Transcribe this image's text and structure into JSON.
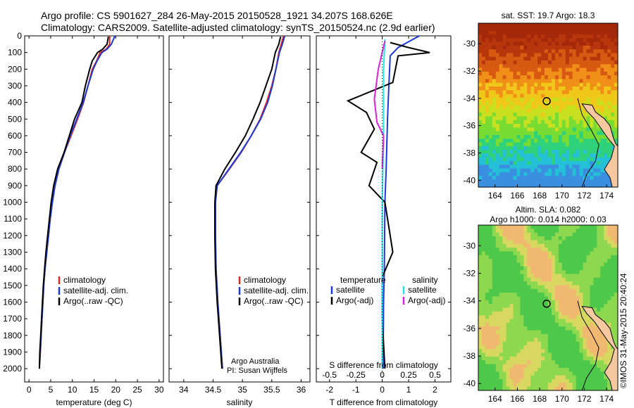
{
  "header": {
    "line1": "Argo profile: CS 5901627_284 26-May-2015 20150528_1921 34.207S 168.626E",
    "line2": "Climatology: CARS2009. Satellite-adjusted climatology: synTS_20150524.nc (2.9d earlier)"
  },
  "footer_stamp": "©IMOS 31-May-2015 20:40:24",
  "credit": {
    "line1": "Argo Australia",
    "line2": "PI: Susan Wijffels"
  },
  "colors": {
    "climatology": "#e8281e",
    "satellite": "#1a3adf",
    "argo": "#000000",
    "sat_s": "#22e6e6",
    "argo_s": "#e020e0"
  },
  "chart_data": [
    {
      "type": "line",
      "xlabel": "temperature (deg C)",
      "ylabel": "",
      "xlim": [
        -1,
        31
      ],
      "ylim": [
        2080,
        0
      ],
      "xticks": [
        0,
        5,
        10,
        15,
        20,
        25,
        30
      ],
      "yticks": [
        0,
        100,
        200,
        300,
        400,
        500,
        600,
        700,
        800,
        900,
        1000,
        1100,
        1200,
        1300,
        1400,
        1500,
        1600,
        1700,
        1800,
        1900,
        2000
      ],
      "legend": {
        "location": "center",
        "items": [
          "climatology",
          "satellite-adj. clim.",
          "Argo(..raw -QC)"
        ]
      },
      "series": [
        {
          "name": "climatology",
          "color": "#e8281e",
          "points": [
            [
              18.6,
              0
            ],
            [
              18.6,
              50
            ],
            [
              17.8,
              80
            ],
            [
              16.4,
              100
            ],
            [
              15.6,
              150
            ],
            [
              14.6,
              200
            ],
            [
              13.6,
              300
            ],
            [
              12.6,
              400
            ],
            [
              11.2,
              500
            ],
            [
              9.7,
              600
            ],
            [
              8.2,
              700
            ],
            [
              6.9,
              800
            ],
            [
              6.0,
              900
            ],
            [
              5.4,
              1000
            ],
            [
              4.9,
              1100
            ],
            [
              4.5,
              1200
            ],
            [
              4.1,
              1300
            ],
            [
              3.7,
              1400
            ],
            [
              3.4,
              1500
            ],
            [
              3.2,
              1600
            ],
            [
              3.0,
              1700
            ],
            [
              2.8,
              1800
            ],
            [
              2.6,
              1900
            ],
            [
              2.4,
              2000
            ]
          ]
        },
        {
          "name": "satellite-adj. clim.",
          "color": "#1a3adf",
          "points": [
            [
              19.8,
              0
            ],
            [
              19.0,
              50
            ],
            [
              18.0,
              80
            ],
            [
              16.8,
              100
            ],
            [
              15.7,
              150
            ],
            [
              14.8,
              200
            ],
            [
              13.6,
              300
            ],
            [
              12.5,
              400
            ],
            [
              11.0,
              500
            ],
            [
              9.5,
              600
            ],
            [
              8.2,
              700
            ],
            [
              6.9,
              800
            ],
            [
              6.0,
              900
            ],
            [
              5.4,
              1000
            ],
            [
              4.9,
              1100
            ],
            [
              4.5,
              1200
            ],
            [
              4.1,
              1300
            ],
            [
              3.7,
              1400
            ],
            [
              3.4,
              1500
            ],
            [
              3.2,
              1600
            ],
            [
              3.0,
              1700
            ],
            [
              2.8,
              1800
            ],
            [
              2.6,
              1900
            ],
            [
              2.4,
              2000
            ]
          ]
        },
        {
          "name": "Argo(..raw -QC)",
          "color": "#000000",
          "points": [
            [
              18.3,
              5
            ],
            [
              18.0,
              50
            ],
            [
              17.0,
              80
            ],
            [
              15.8,
              100
            ],
            [
              14.6,
              150
            ],
            [
              14.0,
              200
            ],
            [
              13.0,
              300
            ],
            [
              12.2,
              400
            ],
            [
              10.5,
              500
            ],
            [
              9.3,
              600
            ],
            [
              8.1,
              700
            ],
            [
              6.6,
              800
            ],
            [
              5.7,
              900
            ],
            [
              5.1,
              1000
            ],
            [
              4.7,
              1100
            ],
            [
              4.3,
              1200
            ],
            [
              3.9,
              1300
            ],
            [
              3.6,
              1400
            ],
            [
              3.3,
              1500
            ],
            [
              3.1,
              1600
            ],
            [
              2.9,
              1700
            ],
            [
              2.7,
              1800
            ],
            [
              2.5,
              1900
            ],
            [
              2.4,
              2000
            ]
          ]
        }
      ]
    },
    {
      "type": "line",
      "xlabel": "salinity",
      "xlim": [
        33.75,
        36.15
      ],
      "ylim": [
        2080,
        0
      ],
      "xticks": [
        34,
        34.5,
        35,
        35.5,
        36
      ],
      "legend": {
        "location": "center",
        "items": [
          "climatology",
          "satellite-adj. clim.",
          "Argo(..raw -QC)"
        ]
      },
      "series": [
        {
          "name": "climatology",
          "color": "#e8281e",
          "points": [
            [
              35.7,
              0
            ],
            [
              35.66,
              50
            ],
            [
              35.62,
              100
            ],
            [
              35.57,
              200
            ],
            [
              35.5,
              300
            ],
            [
              35.41,
              400
            ],
            [
              35.3,
              500
            ],
            [
              35.15,
              600
            ],
            [
              34.98,
              700
            ],
            [
              34.78,
              800
            ],
            [
              34.57,
              900
            ],
            [
              34.54,
              1000
            ],
            [
              34.54,
              1200
            ],
            [
              34.55,
              1400
            ],
            [
              34.58,
              1600
            ],
            [
              34.62,
              1800
            ],
            [
              34.66,
              2000
            ]
          ]
        },
        {
          "name": "satellite-adj. clim.",
          "color": "#1a3adf",
          "points": [
            [
              35.72,
              0
            ],
            [
              35.68,
              50
            ],
            [
              35.63,
              100
            ],
            [
              35.57,
              200
            ],
            [
              35.51,
              300
            ],
            [
              35.43,
              400
            ],
            [
              35.31,
              500
            ],
            [
              35.15,
              600
            ],
            [
              34.97,
              700
            ],
            [
              34.77,
              800
            ],
            [
              34.57,
              900
            ],
            [
              34.54,
              1000
            ],
            [
              34.54,
              1200
            ],
            [
              34.55,
              1400
            ],
            [
              34.58,
              1600
            ],
            [
              34.62,
              1800
            ],
            [
              34.66,
              2000
            ]
          ]
        },
        {
          "name": "Argo(..raw -QC)",
          "color": "#000000",
          "points": [
            [
              35.65,
              5
            ],
            [
              35.62,
              50
            ],
            [
              35.56,
              100
            ],
            [
              35.5,
              200
            ],
            [
              35.4,
              300
            ],
            [
              35.3,
              400
            ],
            [
              35.18,
              500
            ],
            [
              35.05,
              600
            ],
            [
              34.88,
              700
            ],
            [
              34.7,
              800
            ],
            [
              34.55,
              900
            ],
            [
              34.53,
              1000
            ],
            [
              34.53,
              1200
            ],
            [
              34.54,
              1400
            ],
            [
              34.57,
              1600
            ],
            [
              34.61,
              1800
            ],
            [
              34.65,
              2000
            ]
          ]
        }
      ]
    },
    {
      "type": "line",
      "xlabel": "T difference from climatology",
      "xlabel_top": "S difference from climatology",
      "xlim": [
        -2.5,
        2.6
      ],
      "ylim": [
        2080,
        0
      ],
      "xticks": [
        -2,
        -1,
        0,
        1,
        2
      ],
      "top_ticks": [
        "-0.5",
        "-0.25",
        "0",
        "0.25",
        "0.5"
      ],
      "legend": {
        "location": "center",
        "items": [
          "temperature",
          "satellite",
          "Argo(-adj)",
          "salinity",
          "satellite",
          "Argo(-adj)"
        ]
      },
      "series": [
        {
          "name": "temperature satellite",
          "color": "#1a3adf",
          "points": [
            [
              1.4,
              0
            ],
            [
              0.6,
              70
            ],
            [
              0.3,
              120
            ],
            [
              0.25,
              300
            ],
            [
              0.2,
              500
            ],
            [
              0.15,
              800
            ],
            [
              0.1,
              1000
            ],
            [
              0.08,
              1400
            ],
            [
              0.05,
              1600
            ],
            [
              0.03,
              2000
            ]
          ]
        },
        {
          "name": "temperature Argo(-adj)",
          "color": "#000000",
          "points": [
            [
              0.3,
              40
            ],
            [
              1.0,
              70
            ],
            [
              1.8,
              100
            ],
            [
              0.6,
              120
            ],
            [
              0.4,
              280
            ],
            [
              -1.3,
              390
            ],
            [
              -0.6,
              460
            ],
            [
              -0.3,
              560
            ],
            [
              -0.8,
              700
            ],
            [
              -0.2,
              760
            ],
            [
              -0.5,
              900
            ],
            [
              0.1,
              1000
            ],
            [
              0.3,
              1200
            ],
            [
              0.4,
              1300
            ],
            [
              0.0,
              1450
            ],
            [
              0.0,
              1700
            ],
            [
              0.1,
              2000
            ]
          ]
        },
        {
          "name": "salinity satellite",
          "color": "#22e6e6",
          "points": [
            [
              0.1,
              20
            ],
            [
              0.05,
              200
            ],
            [
              0.05,
              600
            ],
            [
              0.0,
              1000
            ],
            [
              0.0,
              2000
            ]
          ]
        },
        {
          "name": "salinity Argo(-adj)",
          "color": "#e020e0",
          "points": [
            [
              0.1,
              30
            ],
            [
              -0.15,
              200
            ],
            [
              -0.3,
              380
            ],
            [
              -0.2,
              520
            ],
            [
              0.05,
              600
            ],
            [
              0.0,
              800
            ]
          ]
        }
      ]
    },
    {
      "type": "heatmap",
      "title": "sat. SST: 19.7 Argo: 18.3",
      "xticks": [
        164,
        166,
        168,
        170,
        172,
        174
      ],
      "yticks": [
        -30,
        -32,
        -34,
        -36,
        -38,
        -40
      ],
      "xlim": [
        162.5,
        175
      ],
      "ylim": [
        -40.5,
        -28.5
      ],
      "marker": {
        "lon": 168.626,
        "lat": -34.207
      }
    },
    {
      "type": "heatmap",
      "title": "Altim. SLA: 0.082",
      "subtitle": "Argo h1000: 0.014 h2000: 0.03",
      "xticks": [
        164,
        166,
        168,
        170,
        172,
        174
      ],
      "yticks": [
        -30,
        -32,
        -34,
        -36,
        -38,
        -40
      ],
      "xlim": [
        162.5,
        175
      ],
      "ylim": [
        -40.5,
        -28.5
      ],
      "marker": {
        "lon": 168.626,
        "lat": -34.207
      }
    }
  ]
}
